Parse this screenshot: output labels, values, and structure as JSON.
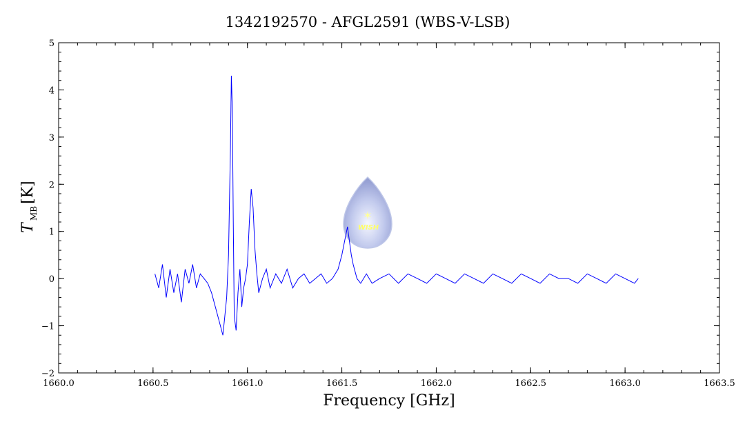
{
  "chart_data": {
    "type": "line",
    "title": "1342192570 - AFGL2591 (WBS-V-LSB)",
    "xlabel": "Frequency [GHz]",
    "ylabel_main": "T",
    "ylabel_sub": "MB",
    "ylabel_unit": "[K]",
    "xlim": [
      1660.0,
      1663.5
    ],
    "ylim": [
      -2,
      5
    ],
    "xticks": [
      "1660.0",
      "1660.5",
      "1661.0",
      "1661.5",
      "1662.0",
      "1662.5",
      "1663.0",
      "1663.5"
    ],
    "yticks": [
      "−2",
      "−1",
      "0",
      "1",
      "2",
      "3",
      "4",
      "5"
    ],
    "grid": false,
    "series_color": "#0000ff",
    "logo_text": "WISH",
    "series": [
      {
        "x": [
          1660.51,
          1660.53,
          1660.55,
          1660.57,
          1660.59,
          1660.61,
          1660.63,
          1660.65,
          1660.67,
          1660.69,
          1660.71,
          1660.73,
          1660.75,
          1660.77,
          1660.79,
          1660.81,
          1660.83,
          1660.85,
          1660.87,
          1660.88,
          1660.89,
          1660.9,
          1660.91,
          1660.915,
          1660.92,
          1660.925,
          1660.93,
          1660.94,
          1660.95,
          1660.96,
          1660.97,
          1660.98,
          1660.99,
          1661.0,
          1661.01,
          1661.02,
          1661.03,
          1661.04,
          1661.05,
          1661.06,
          1661.08,
          1661.1,
          1661.12,
          1661.15,
          1661.18,
          1661.21,
          1661.24,
          1661.27,
          1661.3,
          1661.33,
          1661.36,
          1661.39,
          1661.42,
          1661.45,
          1661.48,
          1661.5,
          1661.52,
          1661.53,
          1661.54,
          1661.55,
          1661.56,
          1661.58,
          1661.6,
          1661.63,
          1661.66,
          1661.7,
          1661.75,
          1661.8,
          1661.85,
          1661.9,
          1661.95,
          1662.0,
          1662.05,
          1662.1,
          1662.15,
          1662.2,
          1662.25,
          1662.3,
          1662.35,
          1662.4,
          1662.45,
          1662.5,
          1662.55,
          1662.6,
          1662.65,
          1662.7,
          1662.75,
          1662.8,
          1662.85,
          1662.9,
          1662.95,
          1663.0,
          1663.05,
          1663.07
        ],
        "y": [
          0.1,
          -0.2,
          0.3,
          -0.4,
          0.2,
          -0.3,
          0.1,
          -0.5,
          0.2,
          -0.1,
          0.3,
          -0.2,
          0.1,
          0.0,
          -0.1,
          -0.3,
          -0.6,
          -0.9,
          -1.2,
          -0.8,
          -0.4,
          0.5,
          2.8,
          4.3,
          3.6,
          1.2,
          -0.8,
          -1.1,
          -0.3,
          0.2,
          -0.6,
          -0.2,
          0.0,
          0.3,
          1.2,
          1.9,
          1.5,
          0.6,
          0.1,
          -0.3,
          0.0,
          0.2,
          -0.2,
          0.1,
          -0.1,
          0.2,
          -0.2,
          0.0,
          0.1,
          -0.1,
          0.0,
          0.1,
          -0.1,
          0.0,
          0.2,
          0.5,
          0.9,
          1.1,
          0.8,
          0.5,
          0.3,
          0.0,
          -0.1,
          0.1,
          -0.1,
          0.0,
          0.1,
          -0.1,
          0.1,
          0.0,
          -0.1,
          0.1,
          0.0,
          -0.1,
          0.1,
          0.0,
          -0.1,
          0.1,
          0.0,
          -0.1,
          0.1,
          0.0,
          -0.1,
          0.1,
          0.0,
          0.0,
          -0.1,
          0.1,
          0.0,
          -0.1,
          0.1,
          0.0,
          -0.1,
          0.0
        ]
      }
    ]
  }
}
